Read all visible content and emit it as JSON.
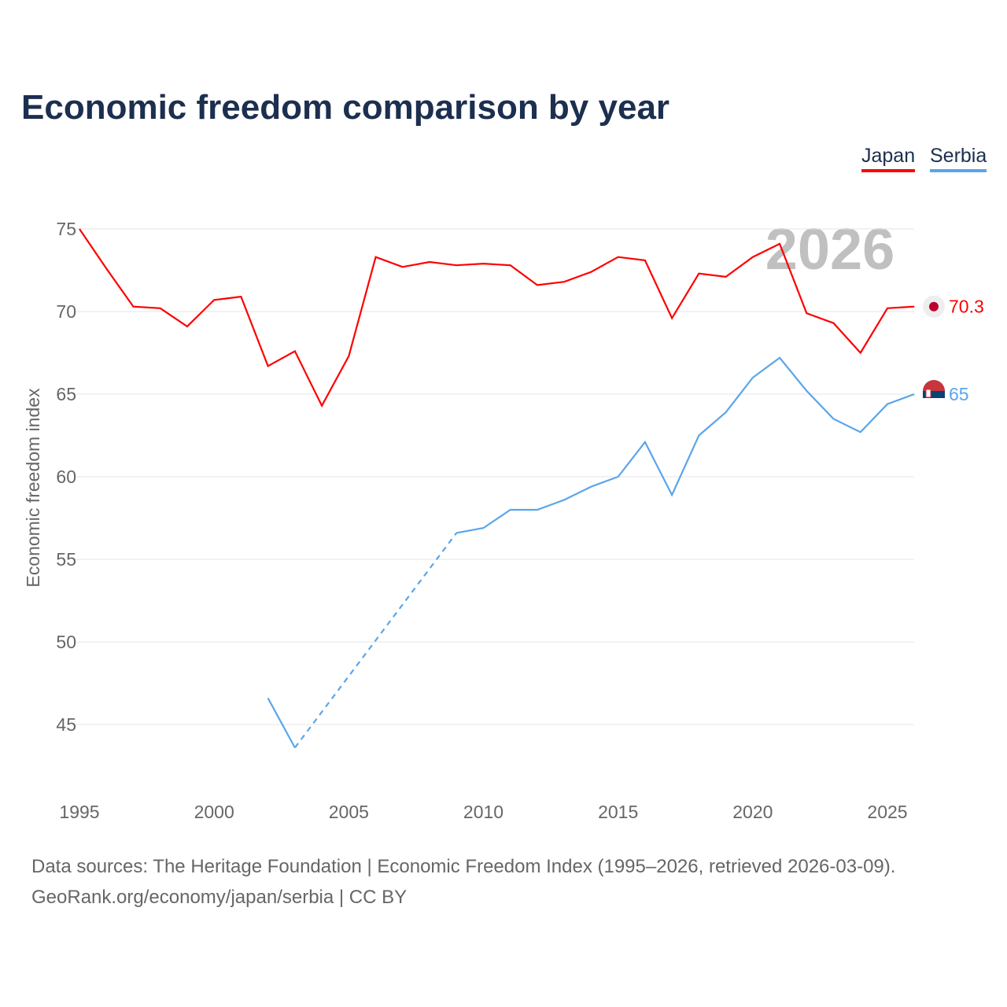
{
  "title": "Economic freedom comparison by year",
  "year_label": "2026",
  "sources_line1": "Data sources: The Heritage Foundation | Economic Freedom Index (1995–2026, retrieved 2026-03-09).",
  "sources_line2": "GeoRank.org/economy/japan/serbia | CC BY",
  "chart_data": {
    "type": "line",
    "title": "Economic freedom comparison by year",
    "xlabel": "",
    "ylabel": "Economic freedom index",
    "xlim": [
      1995,
      2026
    ],
    "ylim": [
      42,
      77
    ],
    "xticks": [
      1995,
      2000,
      2005,
      2010,
      2015,
      2020,
      2025
    ],
    "yticks": [
      45,
      50,
      55,
      60,
      65,
      70,
      75
    ],
    "grid": true,
    "legend": "top-right",
    "series": [
      {
        "name": "Japan",
        "color": "#ff0000",
        "end_label": "70.3",
        "x": [
          1995,
          1996,
          1997,
          1998,
          1999,
          2000,
          2001,
          2002,
          2003,
          2004,
          2005,
          2006,
          2007,
          2008,
          2009,
          2010,
          2011,
          2012,
          2013,
          2014,
          2015,
          2016,
          2017,
          2018,
          2019,
          2020,
          2021,
          2022,
          2023,
          2024,
          2025,
          2026
        ],
        "y": [
          75.0,
          72.6,
          70.3,
          70.2,
          69.1,
          70.7,
          70.9,
          66.7,
          67.6,
          64.3,
          67.3,
          73.3,
          72.7,
          73.0,
          72.8,
          72.9,
          72.8,
          71.6,
          71.8,
          72.4,
          73.3,
          73.1,
          69.6,
          72.3,
          72.1,
          73.3,
          74.1,
          69.9,
          69.3,
          67.5,
          70.2,
          70.3
        ]
      },
      {
        "name": "Serbia",
        "color": "#5aa5ea",
        "end_label": "65",
        "x": [
          2002,
          2003,
          2009,
          2010,
          2011,
          2012,
          2013,
          2014,
          2015,
          2016,
          2017,
          2018,
          2019,
          2020,
          2021,
          2022,
          2023,
          2024,
          2025,
          2026
        ],
        "y": [
          46.6,
          43.6,
          56.6,
          56.9,
          58.0,
          58.0,
          58.6,
          59.4,
          60.0,
          62.1,
          58.9,
          62.5,
          63.9,
          66.0,
          67.2,
          65.2,
          63.5,
          62.7,
          64.4,
          65.0
        ],
        "gap_interpolated": [
          2003,
          2009
        ]
      }
    ]
  }
}
